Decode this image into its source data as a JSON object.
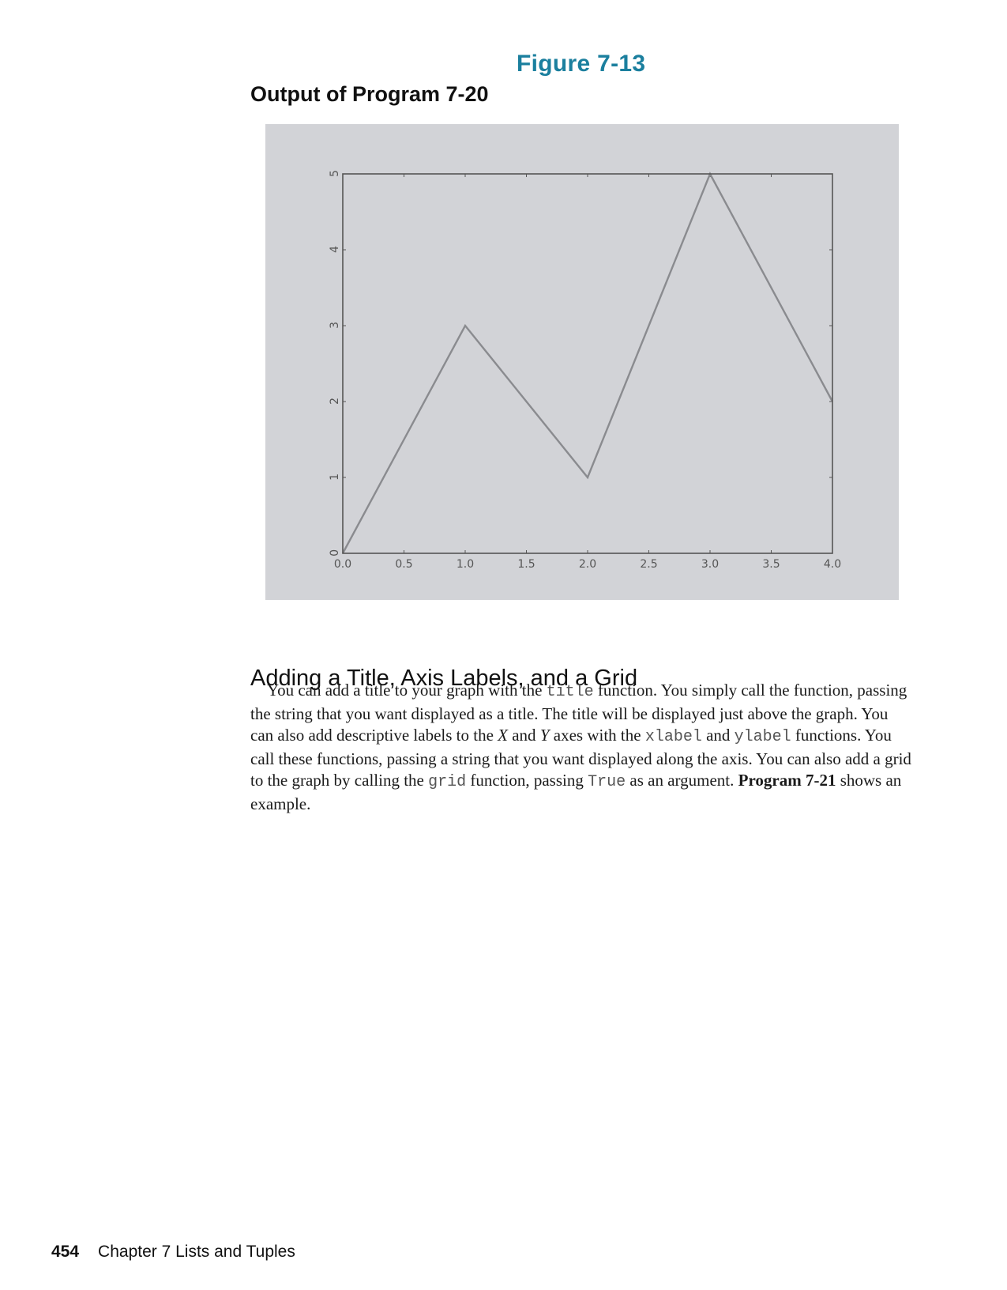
{
  "figure": {
    "label": "Figure 7-13",
    "caption": "Output of Program 7-20"
  },
  "chart_data": {
    "type": "line",
    "x": [
      0,
      1,
      2,
      3,
      4
    ],
    "series": [
      {
        "values": [
          0,
          3,
          1,
          5,
          2
        ]
      }
    ],
    "title": "",
    "xlabel": "",
    "ylabel": "",
    "xlim": [
      0,
      4
    ],
    "ylim": [
      0,
      5
    ],
    "xticks": [
      "0.0",
      "0.5",
      "1.0",
      "1.5",
      "2.0",
      "2.5",
      "3.0",
      "3.5",
      "4.0"
    ],
    "yticks": [
      "0",
      "1",
      "2",
      "3",
      "4",
      "5"
    ],
    "grid": false,
    "line_color": "#8a8b8f",
    "background": "#d2d3d7"
  },
  "section": {
    "heading": "Adding a Title, Axis Labels, and a Grid",
    "p1": "You can add a title to your graph with the ",
    "c_title": "title",
    "p2": " function. You simply call the function, passing the string that you want displayed as a title. The title will be displayed just above the graph. You can also add descriptive labels to the ",
    "x_axis": "X",
    "p3": " and ",
    "y_axis": "Y",
    "p4": " axes with the ",
    "c_xlabel": "xlabel",
    "p5": " and ",
    "c_ylabel": "ylabel",
    "p6": " functions. You call these functions, passing a string that you want displayed along the axis. You can also add a grid to the graph by calling the ",
    "c_grid": "grid",
    "p7": " function, passing ",
    "c_true": "True",
    "p8": " as an argument. ",
    "program_ref": "Program 7-21",
    "p9": " shows an example."
  },
  "footer": {
    "page_number": "454",
    "chapter": "Chapter 7 Lists and Tuples"
  }
}
